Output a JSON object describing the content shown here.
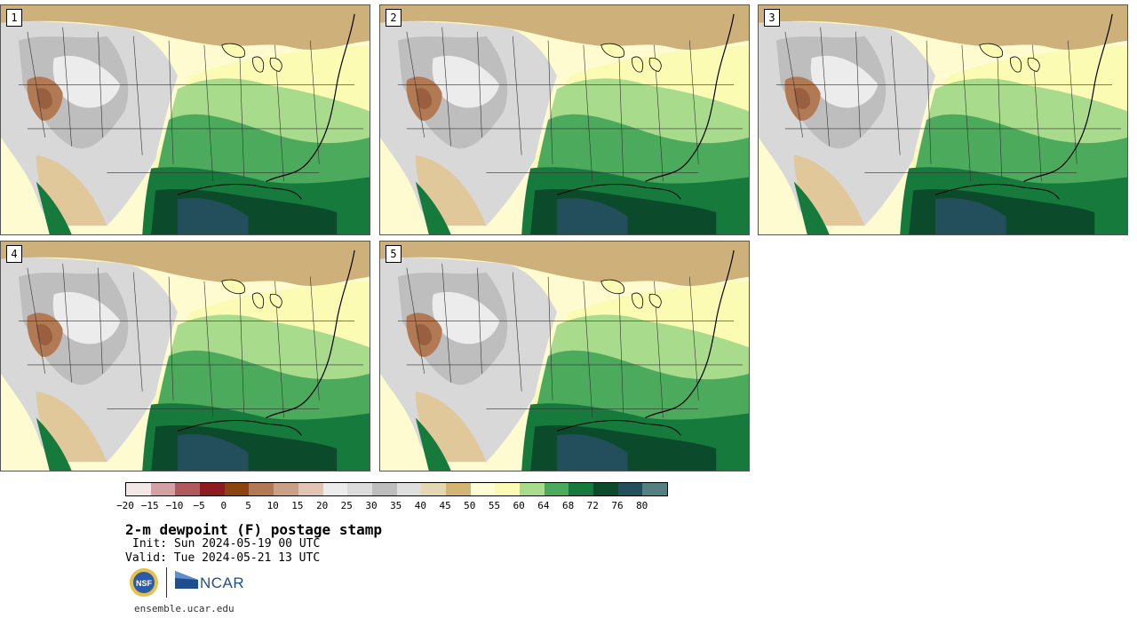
{
  "members": [
    {
      "label": "1"
    },
    {
      "label": "2"
    },
    {
      "label": "3"
    },
    {
      "label": "4"
    },
    {
      "label": "5"
    }
  ],
  "colorbar": {
    "ticks": [
      "−20",
      "−15",
      "−10",
      "−5",
      "0",
      "5",
      "10",
      "15",
      "20",
      "25",
      "30",
      "35",
      "40",
      "45",
      "50",
      "55",
      "60",
      "64",
      "68",
      "72",
      "76",
      "80"
    ],
    "colors": [
      "#f3e7e7",
      "#d5a0a3",
      "#b15a5e",
      "#8c1c1f",
      "#8b4513",
      "#b17a55",
      "#c9a086",
      "#e1c4b3",
      "#ececec",
      "#dcdcdc",
      "#bdbdbd",
      "#dedede",
      "#e5d7b3",
      "#d2b474",
      "#fefed6",
      "#fbfbb3",
      "#a8dc8c",
      "#4caa5c",
      "#157a3c",
      "#0b4a2b",
      "#224f5b",
      "#557f80"
    ]
  },
  "title": "2-m dewpoint (F) postage stamp",
  "init": "Init: Sun 2024-05-19 00 UTC",
  "valid": "Valid: Tue 2024-05-21 13 UTC",
  "logos": {
    "nsf": "NSF",
    "ncar": "NCAR"
  },
  "url": "ensemble.ucar.edu"
}
